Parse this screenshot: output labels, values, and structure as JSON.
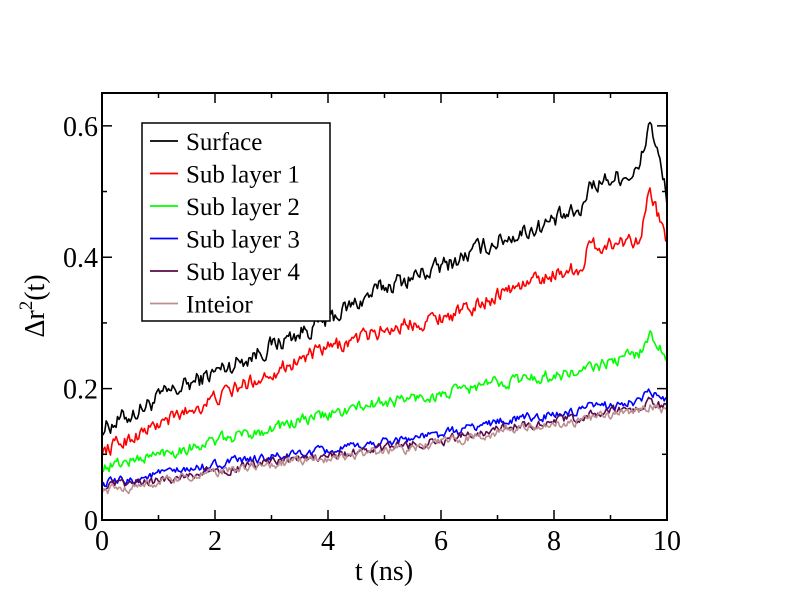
{
  "chart_data": {
    "type": "line",
    "title": "",
    "xlabel": "t (ns)",
    "ylabel": {
      "base": "Δr",
      "sup": "2",
      "rest": "(t)"
    },
    "xlim": [
      0,
      10
    ],
    "ylim": [
      0,
      0.65
    ],
    "xticks": [
      0,
      2,
      4,
      6,
      8,
      10
    ],
    "xtick_labels": [
      "0",
      "2",
      "4",
      "6",
      "8",
      "10"
    ],
    "yticks": [
      0,
      0.2,
      0.4,
      0.6
    ],
    "ytick_labels": [
      "0",
      "0.2",
      "0.4",
      "0.6"
    ],
    "grid": false,
    "legend_position": "top-left",
    "x": [
      0,
      0.5,
      1,
      1.5,
      2,
      2.5,
      3,
      3.5,
      4,
      4.5,
      5,
      5.5,
      6,
      6.5,
      7,
      7.5,
      8,
      8.5,
      8.6,
      9,
      9.5,
      9.7,
      10
    ],
    "series": [
      {
        "name": "Surface",
        "color": "#000000",
        "noise": 0.012,
        "values": [
          0.14,
          0.16,
          0.185,
          0.205,
          0.225,
          0.245,
          0.265,
          0.285,
          0.305,
          0.33,
          0.355,
          0.37,
          0.385,
          0.405,
          0.425,
          0.44,
          0.455,
          0.47,
          0.51,
          0.52,
          0.53,
          0.61,
          0.49
        ]
      },
      {
        "name": "Sub layer 1",
        "color": "#ff0000",
        "noise": 0.01,
        "values": [
          0.105,
          0.125,
          0.145,
          0.165,
          0.185,
          0.205,
          0.225,
          0.245,
          0.26,
          0.275,
          0.29,
          0.3,
          0.31,
          0.32,
          0.345,
          0.36,
          0.375,
          0.385,
          0.415,
          0.42,
          0.43,
          0.5,
          0.42
        ]
      },
      {
        "name": "Sub layer 2",
        "color": "#00ff00",
        "noise": 0.008,
        "values": [
          0.08,
          0.09,
          0.1,
          0.11,
          0.12,
          0.13,
          0.14,
          0.15,
          0.16,
          0.17,
          0.18,
          0.185,
          0.19,
          0.2,
          0.21,
          0.215,
          0.22,
          0.225,
          0.23,
          0.24,
          0.255,
          0.28,
          0.25
        ]
      },
      {
        "name": "Sub layer 3",
        "color": "#0000ff",
        "noise": 0.006,
        "values": [
          0.055,
          0.06,
          0.07,
          0.075,
          0.085,
          0.09,
          0.095,
          0.1,
          0.105,
          0.11,
          0.12,
          0.125,
          0.13,
          0.14,
          0.15,
          0.155,
          0.16,
          0.165,
          0.17,
          0.175,
          0.18,
          0.195,
          0.18
        ]
      },
      {
        "name": "Sub layer 4",
        "color": "#5a0a4a",
        "noise": 0.006,
        "values": [
          0.05,
          0.055,
          0.06,
          0.068,
          0.075,
          0.08,
          0.088,
          0.092,
          0.097,
          0.102,
          0.11,
          0.115,
          0.12,
          0.13,
          0.14,
          0.145,
          0.15,
          0.155,
          0.16,
          0.165,
          0.17,
          0.18,
          0.17
        ]
      },
      {
        "name": "Inteior",
        "color": "#bc8f8f",
        "noise": 0.006,
        "values": [
          0.045,
          0.05,
          0.057,
          0.065,
          0.072,
          0.078,
          0.085,
          0.09,
          0.095,
          0.1,
          0.105,
          0.11,
          0.118,
          0.125,
          0.135,
          0.14,
          0.145,
          0.15,
          0.155,
          0.16,
          0.165,
          0.175,
          0.165
        ]
      }
    ]
  }
}
